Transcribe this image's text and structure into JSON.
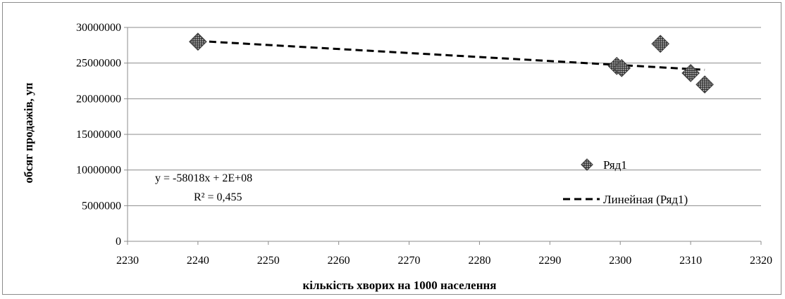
{
  "chart_data": {
    "type": "scatter",
    "xlabel": "кількість хворих на 1000 населення",
    "ylabel": "обсяг продажів, уп",
    "xlim": [
      2230,
      2320
    ],
    "ylim": [
      0,
      30000000
    ],
    "x_ticks": [
      2230,
      2240,
      2250,
      2260,
      2270,
      2280,
      2290,
      2300,
      2310,
      2320
    ],
    "y_ticks": [
      0,
      5000000,
      10000000,
      15000000,
      20000000,
      25000000,
      30000000
    ],
    "grid": "horizontal",
    "legend_position": "right",
    "series": [
      {
        "name": "Ряд1",
        "marker": "diamond",
        "color": "#595959",
        "points": [
          {
            "x": 2240,
            "y": 28000000
          },
          {
            "x": 2299.5,
            "y": 24600000
          },
          {
            "x": 2300.2,
            "y": 24300000
          },
          {
            "x": 2305.7,
            "y": 27700000
          },
          {
            "x": 2310,
            "y": 23600000
          },
          {
            "x": 2312,
            "y": 22000000
          }
        ]
      }
    ],
    "trendline": {
      "name": "Линейная (Ряд1)",
      "style": "dashed",
      "color": "#000000",
      "x": [
        2240,
        2312
      ],
      "y": [
        28100000,
        24050000
      ]
    },
    "annotations": {
      "equation": "y = -58018x + 2E+08",
      "r_squared": "R² = 0,455"
    }
  }
}
